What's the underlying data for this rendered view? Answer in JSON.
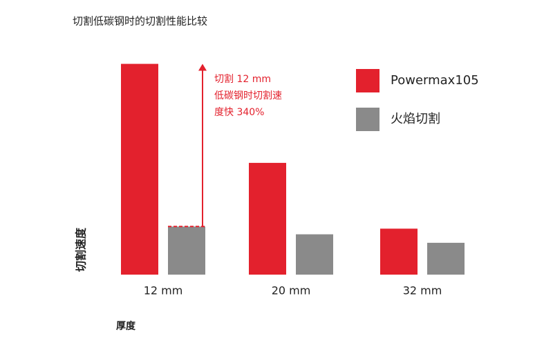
{
  "chart_data": {
    "type": "bar",
    "title": "切割低碳钢时的切割性能比较",
    "categories": [
      "12 mm",
      "20 mm",
      "32 mm"
    ],
    "series": [
      {
        "name": "Powermax105",
        "color": "#e3212d",
        "values": [
          298,
          158,
          65
        ]
      },
      {
        "name": "火焰切割",
        "color": "#8a8a8a",
        "values": [
          68,
          57,
          45
        ]
      }
    ],
    "ylim": [
      0,
      320
    ],
    "x_label": "厚度",
    "y_label": "切割速度",
    "annotation": [
      "切割 12 mm",
      "低碳钢时切割速",
      "度快 340%"
    ],
    "annotation_color": "#e3212d"
  }
}
